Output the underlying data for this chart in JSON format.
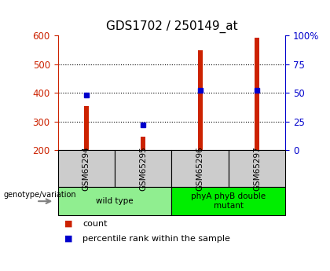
{
  "title": "GDS1702 / 250149_at",
  "samples": [
    "GSM65294",
    "GSM65295",
    "GSM65296",
    "GSM65297"
  ],
  "count_values": [
    355,
    248,
    548,
    592
  ],
  "percentile_values": [
    48,
    22,
    52,
    52
  ],
  "ylim_left": [
    200,
    600
  ],
  "ylim_right": [
    0,
    100
  ],
  "yticks_left": [
    200,
    300,
    400,
    500,
    600
  ],
  "yticks_right": [
    0,
    25,
    50,
    75,
    100
  ],
  "groups": [
    {
      "label": "wild type",
      "samples": [
        0,
        1
      ],
      "color": "#90ee90"
    },
    {
      "label": "phyA phyB double\nmutant",
      "samples": [
        2,
        3
      ],
      "color": "#00ee00"
    }
  ],
  "bar_color": "#cc2200",
  "dot_color": "#0000cc",
  "bar_width": 0.08,
  "genotype_label": "genotype/variation",
  "legend_count": "count",
  "legend_pct": "percentile rank within the sample",
  "left_axis_color": "#cc2200",
  "right_axis_color": "#0000cc",
  "sample_box_color": "#cccccc",
  "title_fontsize": 11,
  "tick_fontsize": 8.5,
  "dot_size": 5
}
